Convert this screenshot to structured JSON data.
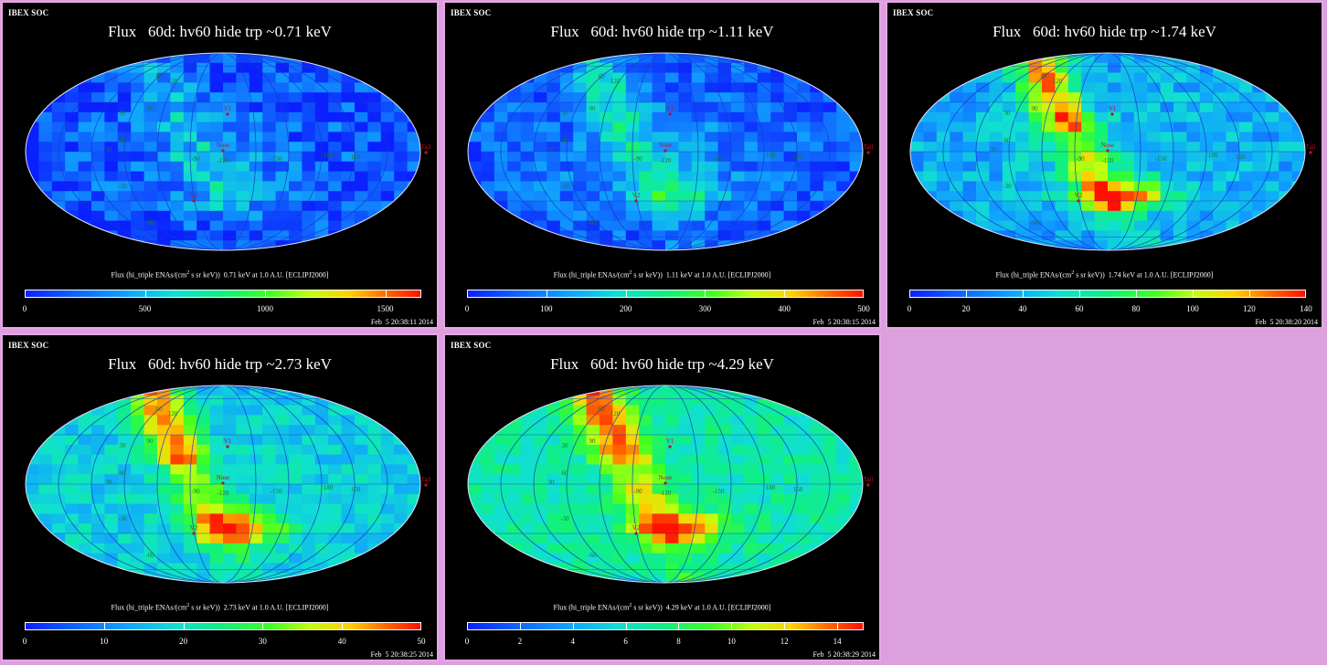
{
  "chart_data": [
    {
      "type": "heatmap",
      "org": "IBEX SOC",
      "title": "Flux   60d: hv60 hide trp ~0.71 keV",
      "cbar_label_pre": "Flux (hi_triple ENAs/(cm",
      "cbar_label_sup": "2",
      "cbar_label_post": " s sr keV))  0.71 keV at 1.0 A.U. [ECLIPJ2000]",
      "color_range": [
        0,
        1650
      ],
      "ticks": [
        0,
        500,
        1000,
        1500
      ],
      "tick_labels": [
        "0",
        "500",
        "1000",
        "1500"
      ],
      "timestamp": "Feb  5 20:38:11 2014",
      "features": {
        "ribbon": 0.15,
        "tail": 0.25,
        "base": 0.15,
        "noise": 0.15
      },
      "markers": {
        "v1": "V1",
        "nose": "Nose",
        "v2": "V2",
        "tail": "Tail"
      },
      "grid_labels": [
        "60",
        "30",
        "-30",
        "-60",
        "-90",
        "-120",
        "-150",
        "180",
        "150",
        "120",
        "90",
        "60",
        "30"
      ]
    },
    {
      "type": "heatmap",
      "org": "IBEX SOC",
      "title": "Flux   60d: hv60 hide trp ~1.11 keV",
      "cbar_label_pre": "Flux (hi_triple ENAs/(cm",
      "cbar_label_sup": "2",
      "cbar_label_post": " s sr keV))  1.11 keV at 1.0 A.U. [ECLIPJ2000]",
      "color_range": [
        0,
        500
      ],
      "ticks": [
        0,
        100,
        200,
        300,
        400,
        500
      ],
      "tick_labels": [
        "0",
        "100",
        "200",
        "300",
        "400",
        "500"
      ],
      "timestamp": "Feb  5 20:38:15 2014",
      "features": {
        "ribbon": 0.25,
        "tail": 0.2,
        "base": 0.18,
        "noise": 0.12
      },
      "markers": {
        "v1": "V1",
        "nose": "Nose",
        "v2": "V2",
        "tail": "Tail"
      },
      "grid_labels": [
        "60",
        "30",
        "-30",
        "-60",
        "-90",
        "-120",
        "-150",
        "180",
        "150",
        "120",
        "90",
        "60",
        "30"
      ]
    },
    {
      "type": "heatmap",
      "org": "IBEX SOC",
      "title": "Flux   60d: hv60 hide trp ~1.74 keV",
      "cbar_label_pre": "Flux (hi_triple ENAs/(cm",
      "cbar_label_sup": "2",
      "cbar_label_post": " s sr keV))  1.74 keV at 1.0 A.U. [ECLIPJ2000]",
      "color_range": [
        0,
        140
      ],
      "ticks": [
        0,
        20,
        40,
        60,
        80,
        100,
        120,
        140
      ],
      "tick_labels": [
        "0",
        "20",
        "40",
        "60",
        "80",
        "100",
        "120",
        "140"
      ],
      "timestamp": "Feb  5 20:38:20 2014",
      "features": {
        "ribbon": 0.55,
        "tail": 0.1,
        "base": 0.3,
        "noise": 0.1
      },
      "markers": {
        "v1": "V1",
        "nose": "Nose",
        "v2": "V2",
        "tail": "Tail"
      },
      "grid_labels": [
        "60",
        "30",
        "-30",
        "-60",
        "-90",
        "-120",
        "-150",
        "180",
        "150",
        "120",
        "90",
        "60",
        "30"
      ]
    },
    {
      "type": "heatmap",
      "org": "IBEX SOC",
      "title": "Flux   60d: hv60 hide trp ~2.73 keV",
      "cbar_label_pre": "Flux (hi_triple ENAs/(cm",
      "cbar_label_sup": "2",
      "cbar_label_post": " s sr keV))  2.73 keV at 1.0 A.U. [ECLIPJ2000]",
      "color_range": [
        0,
        50
      ],
      "ticks": [
        0,
        10,
        20,
        30,
        40,
        50
      ],
      "tick_labels": [
        "0",
        "10",
        "20",
        "30",
        "40",
        "50"
      ],
      "timestamp": "Feb  5 20:38:25 2014",
      "features": {
        "ribbon": 0.5,
        "tail": 0.05,
        "base": 0.36,
        "noise": 0.08
      },
      "markers": {
        "v1": "V1",
        "nose": "Nose",
        "v2": "V2",
        "tail": "Tail"
      },
      "grid_labels": [
        "60",
        "30",
        "-30",
        "-60",
        "-90",
        "-120",
        "-150",
        "180",
        "150",
        "120",
        "90",
        "60",
        "30"
      ]
    },
    {
      "type": "heatmap",
      "org": "IBEX SOC",
      "title": "Flux   60d: hv60 hide trp ~4.29 keV",
      "cbar_label_pre": "Flux (hi_triple ENAs/(cm",
      "cbar_label_sup": "2",
      "cbar_label_post": " s sr keV))  4.29 keV at 1.0 A.U. [ECLIPJ2000]",
      "color_range": [
        0,
        15
      ],
      "ticks": [
        0,
        2,
        4,
        6,
        8,
        10,
        12,
        14
      ],
      "tick_labels": [
        "0",
        "2",
        "4",
        "6",
        "8",
        "10",
        "12",
        "14"
      ],
      "timestamp": "Feb  5 20:38:29 2014",
      "features": {
        "ribbon": 0.45,
        "tail": 0.0,
        "base": 0.44,
        "noise": 0.08
      },
      "markers": {
        "v1": "V1",
        "nose": "Nose",
        "v2": "V2",
        "tail": "Tail"
      },
      "grid_labels": [
        "60",
        "30",
        "-30",
        "-60",
        "-90",
        "-120",
        "-150",
        "180",
        "150",
        "120",
        "90",
        "60",
        "30"
      ]
    }
  ]
}
